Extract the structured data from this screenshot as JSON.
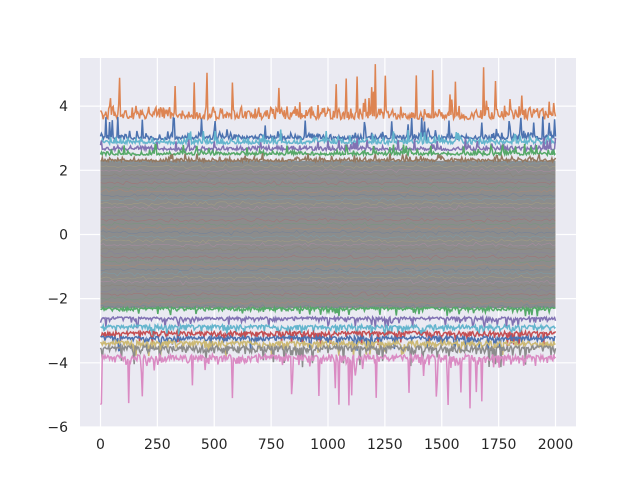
{
  "chart_data": {
    "type": "line",
    "title": "",
    "xlabel": "",
    "ylabel": "",
    "xlim": [
      -90,
      2090
    ],
    "ylim": [
      -6,
      5.5
    ],
    "x_ticks": [
      0,
      250,
      500,
      750,
      1000,
      1250,
      1500,
      1750,
      2000
    ],
    "x_tick_labels": [
      "0",
      "250",
      "500",
      "750",
      "1000",
      "1250",
      "1500",
      "1750",
      "2000"
    ],
    "y_ticks": [
      -6,
      -4,
      -2,
      0,
      2,
      4
    ],
    "y_tick_labels": [
      "−6",
      "−4",
      "−2",
      "0",
      "2",
      "4"
    ],
    "grid": true,
    "legend": "none",
    "x_range": [
      0,
      2000
    ],
    "band_color": "#8c8c8c",
    "series": [
      {
        "color": "#dd8452",
        "base": 3.7,
        "spread": 0.35,
        "spike": 1.3,
        "dir": 1,
        "offset": 0.38
      },
      {
        "color": "#4c72b0",
        "base": 3.0,
        "spread": 0.18,
        "spike": 0.5,
        "dir": 1,
        "offset": 0.15
      },
      {
        "color": "#64b5cd",
        "base": 2.85,
        "spread": 0.15,
        "spike": 0.3,
        "dir": 1,
        "offset": 0.1
      },
      {
        "color": "#8172b3",
        "base": 2.65,
        "spread": 0.12,
        "spike": 0.25,
        "dir": 1,
        "offset": 0.1
      },
      {
        "color": "#55a868",
        "base": 2.5,
        "spread": 0.12,
        "spike": 0.2,
        "dir": 1,
        "offset": 0.1
      },
      {
        "color": "#937860",
        "base": 2.3,
        "spread": 0.1,
        "spike": 0.15,
        "dir": 1,
        "offset": 0.1
      },
      {
        "color": "#55a868",
        "base": -2.3,
        "spread": 0.1,
        "spike": 0.15,
        "dir": -1,
        "offset": 0.1
      },
      {
        "color": "#8172b3",
        "base": -2.6,
        "spread": 0.12,
        "spike": 0.2,
        "dir": -1,
        "offset": 0.1
      },
      {
        "color": "#64b5cd",
        "base": -2.85,
        "spread": 0.15,
        "spike": 0.25,
        "dir": -1,
        "offset": 0.1
      },
      {
        "color": "#c44e52",
        "base": -3.05,
        "spread": 0.15,
        "spike": 0.3,
        "dir": -1,
        "offset": 0.1
      },
      {
        "color": "#4c72b0",
        "base": -3.2,
        "spread": 0.15,
        "spike": 0.3,
        "dir": -1,
        "offset": 0.1
      },
      {
        "color": "#ccb974",
        "base": -3.35,
        "spread": 0.18,
        "spike": 0.35,
        "dir": -1,
        "offset": 0.1
      },
      {
        "color": "#8c8c8c",
        "base": -3.5,
        "spread": 0.2,
        "spike": 0.45,
        "dir": -1,
        "offset": 0.1
      },
      {
        "color": "#da8bc3",
        "base": -3.85,
        "spread": 0.28,
        "spike": 1.3,
        "dir": -1,
        "offset": 0.38
      }
    ]
  }
}
